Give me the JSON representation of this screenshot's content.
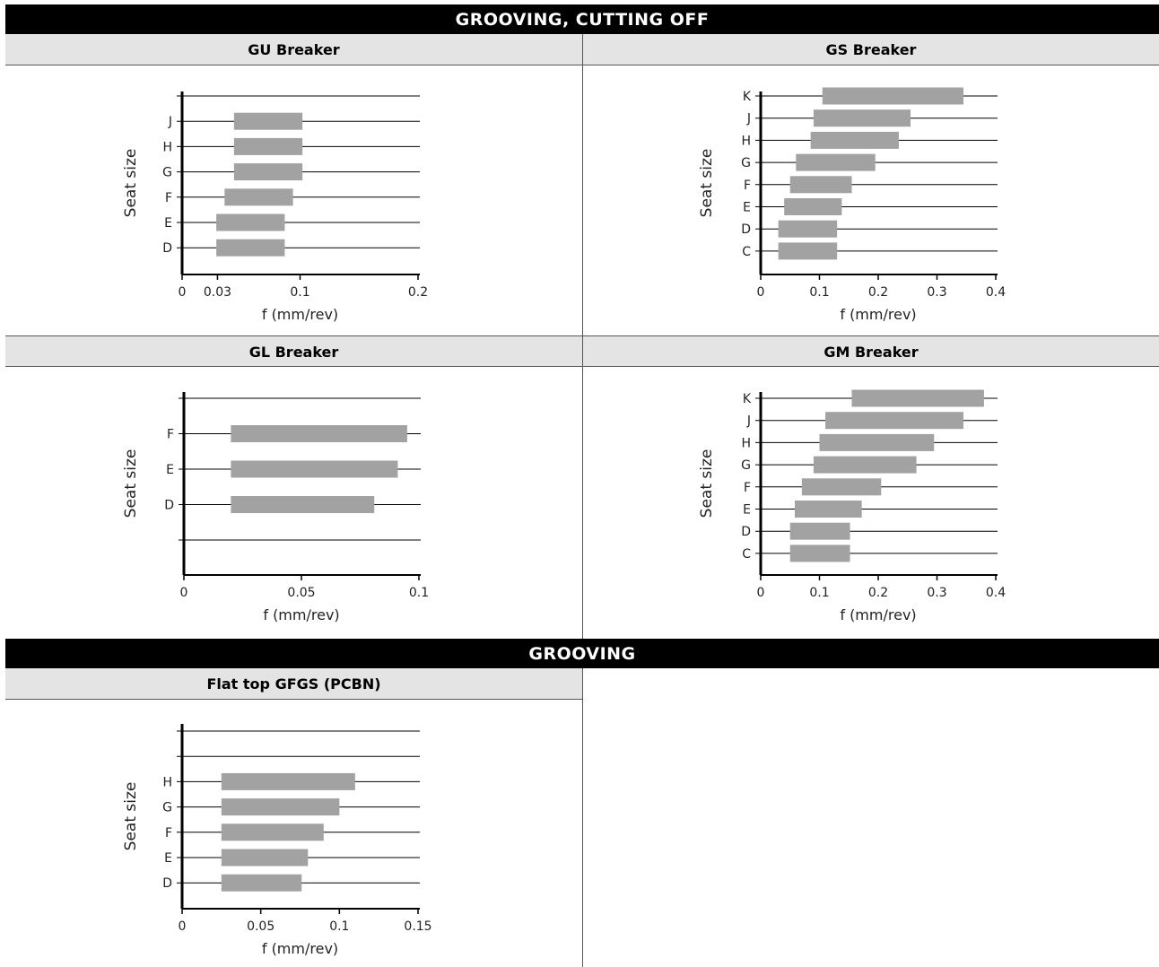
{
  "sections": {
    "top_title": "GROOVING, CUTTING OFF",
    "bottom_title": "GROOVING"
  },
  "panels": {
    "gu": "GU Breaker",
    "gs": "GS Breaker",
    "gl": "GL Breaker",
    "gm": "GM Breaker",
    "gfgs": "Flat top GFGS (PCBN)"
  },
  "colors": {
    "bar": "#a2a2a2",
    "axis": "#000000",
    "gridline": "#000000",
    "header_bg": "#e4e4e4",
    "band_bg": "#000000"
  },
  "chart_data": [
    {
      "id": "gu",
      "type": "bar",
      "orientation": "horizontal",
      "title": "GU Breaker",
      "xlabel": "f (mm/rev)",
      "ylabel": "Seat size",
      "xlim": [
        0,
        0.2
      ],
      "xticks": [
        0,
        0.03,
        0.1,
        0.2
      ],
      "rows": [
        "",
        "J",
        "H",
        "G",
        "F",
        "E",
        "D"
      ],
      "bars": [
        {
          "category": "J",
          "start": 0.044,
          "end": 0.102
        },
        {
          "category": "H",
          "start": 0.044,
          "end": 0.102
        },
        {
          "category": "G",
          "start": 0.044,
          "end": 0.102
        },
        {
          "category": "F",
          "start": 0.036,
          "end": 0.094
        },
        {
          "category": "E",
          "start": 0.029,
          "end": 0.087
        },
        {
          "category": "D",
          "start": 0.029,
          "end": 0.087
        }
      ]
    },
    {
      "id": "gs",
      "type": "bar",
      "orientation": "horizontal",
      "title": "GS Breaker",
      "xlabel": "f (mm/rev)",
      "ylabel": "Seat size",
      "xlim": [
        0,
        0.4
      ],
      "xticks": [
        0,
        0.1,
        0.2,
        0.3,
        0.4
      ],
      "rows": [
        "K",
        "J",
        "H",
        "G",
        "F",
        "E",
        "D",
        "C"
      ],
      "bars": [
        {
          "category": "K",
          "start": 0.105,
          "end": 0.345
        },
        {
          "category": "J",
          "start": 0.09,
          "end": 0.255
        },
        {
          "category": "H",
          "start": 0.085,
          "end": 0.235
        },
        {
          "category": "G",
          "start": 0.06,
          "end": 0.195
        },
        {
          "category": "F",
          "start": 0.05,
          "end": 0.155
        },
        {
          "category": "E",
          "start": 0.04,
          "end": 0.138
        },
        {
          "category": "D",
          "start": 0.03,
          "end": 0.13
        },
        {
          "category": "C",
          "start": 0.03,
          "end": 0.13
        }
      ]
    },
    {
      "id": "gl",
      "type": "bar",
      "orientation": "horizontal",
      "title": "GL Breaker",
      "xlabel": "f (mm/rev)",
      "ylabel": "Seat size",
      "xlim": [
        0,
        0.1
      ],
      "xticks": [
        0,
        0.05,
        0.1
      ],
      "rows": [
        "",
        "F",
        "E",
        "D",
        ""
      ],
      "bars": [
        {
          "category": "F",
          "start": 0.02,
          "end": 0.095
        },
        {
          "category": "E",
          "start": 0.02,
          "end": 0.091
        },
        {
          "category": "D",
          "start": 0.02,
          "end": 0.081
        }
      ]
    },
    {
      "id": "gm",
      "type": "bar",
      "orientation": "horizontal",
      "title": "GM Breaker",
      "xlabel": "f (mm/rev)",
      "ylabel": "Seat size",
      "xlim": [
        0,
        0.4
      ],
      "xticks": [
        0,
        0.1,
        0.2,
        0.3,
        0.4
      ],
      "rows": [
        "K",
        "J",
        "H",
        "G",
        "F",
        "E",
        "D",
        "C"
      ],
      "bars": [
        {
          "category": "K",
          "start": 0.155,
          "end": 0.38
        },
        {
          "category": "J",
          "start": 0.11,
          "end": 0.345
        },
        {
          "category": "H",
          "start": 0.1,
          "end": 0.295
        },
        {
          "category": "G",
          "start": 0.09,
          "end": 0.265
        },
        {
          "category": "F",
          "start": 0.07,
          "end": 0.205
        },
        {
          "category": "E",
          "start": 0.058,
          "end": 0.172
        },
        {
          "category": "D",
          "start": 0.05,
          "end": 0.152
        },
        {
          "category": "C",
          "start": 0.05,
          "end": 0.152
        }
      ]
    },
    {
      "id": "gfgs",
      "type": "bar",
      "orientation": "horizontal",
      "title": "Flat top GFGS (PCBN)",
      "xlabel": "f (mm/rev)",
      "ylabel": "Seat size",
      "xlim": [
        0,
        0.15
      ],
      "xticks": [
        0,
        0.05,
        0.1,
        0.15
      ],
      "rows": [
        "",
        "",
        "H",
        "G",
        "F",
        "E",
        "D"
      ],
      "bars": [
        {
          "category": "H",
          "start": 0.025,
          "end": 0.11
        },
        {
          "category": "G",
          "start": 0.025,
          "end": 0.1
        },
        {
          "category": "F",
          "start": 0.025,
          "end": 0.09
        },
        {
          "category": "E",
          "start": 0.025,
          "end": 0.08
        },
        {
          "category": "D",
          "start": 0.025,
          "end": 0.076
        }
      ]
    }
  ]
}
